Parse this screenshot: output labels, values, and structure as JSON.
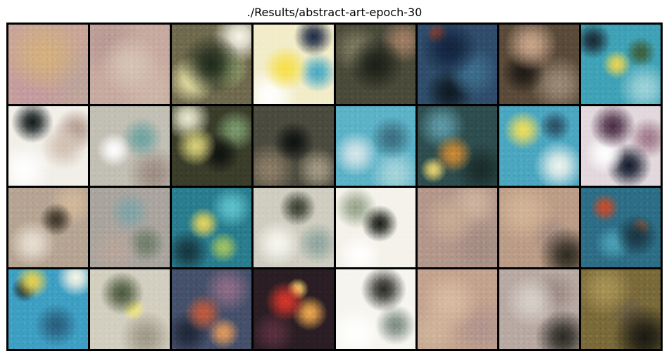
{
  "figure": {
    "title": "./Results/abstract-art-epoch-30",
    "rows": 4,
    "cols": 8,
    "tiles": [
      {
        "base": "#c8a598",
        "blobs": [
          [
            "#d4b07e",
            45,
            40,
            60
          ],
          [
            "#c39aa0",
            30,
            80,
            50
          ],
          [
            "#bba49b",
            80,
            70,
            45
          ]
        ]
      },
      {
        "base": "#c7aaa0",
        "blobs": [
          [
            "#d6c3b5",
            50,
            50,
            55
          ],
          [
            "#b99a95",
            20,
            20,
            40
          ],
          [
            "#cdb6a8",
            75,
            80,
            40
          ]
        ]
      },
      {
        "base": "#6f6a4e",
        "blobs": [
          [
            "#1f2a1c",
            50,
            50,
            55
          ],
          [
            "#e8e1a6",
            25,
            70,
            30
          ],
          [
            "#f7f5e8",
            85,
            15,
            28
          ],
          [
            "#a7b87d",
            70,
            55,
            30
          ]
        ]
      },
      {
        "base": "#f2ecc9",
        "blobs": [
          [
            "#f6e04a",
            40,
            55,
            35
          ],
          [
            "#1d2a42",
            75,
            15,
            22
          ],
          [
            "#49a9c4",
            80,
            60,
            25
          ],
          [
            "#ffffff",
            20,
            90,
            30
          ]
        ]
      },
      {
        "base": "#4a4a3a",
        "blobs": [
          [
            "#1b2018",
            50,
            50,
            50
          ],
          [
            "#7d7a5f",
            25,
            30,
            30
          ],
          [
            "#a07f64",
            85,
            20,
            25
          ]
        ]
      },
      {
        "base": "#2f4d6b",
        "blobs": [
          [
            "#12233d",
            40,
            30,
            40
          ],
          [
            "#3d6e8c",
            70,
            60,
            35
          ],
          [
            "#0e1a22",
            40,
            85,
            30
          ],
          [
            "#b64a2b",
            25,
            12,
            12
          ]
        ]
      },
      {
        "base": "#5a4a3a",
        "blobs": [
          [
            "#c9a68a",
            40,
            25,
            35
          ],
          [
            "#1e1a15",
            30,
            60,
            30
          ],
          [
            "#9b8a75",
            75,
            75,
            35
          ]
        ]
      },
      {
        "base": "#3fa2b6",
        "blobs": [
          [
            "#e9d554",
            45,
            50,
            25
          ],
          [
            "#1a2a35",
            15,
            20,
            20
          ],
          [
            "#9ed3d8",
            80,
            80,
            30
          ],
          [
            "#3c5e3a",
            75,
            35,
            20
          ]
        ]
      },
      {
        "base": "#f2efe8",
        "blobs": [
          [
            "#111a1c",
            30,
            20,
            25
          ],
          [
            "#d1c0b3",
            70,
            50,
            35
          ],
          [
            "#ffffff",
            20,
            80,
            30
          ],
          [
            "#b29b8e",
            85,
            30,
            25
          ]
        ]
      },
      {
        "base": "#c2bfb4",
        "blobs": [
          [
            "#ffffff",
            30,
            55,
            25
          ],
          [
            "#6fa3a0",
            65,
            40,
            30
          ],
          [
            "#9c8c82",
            80,
            85,
            30
          ]
        ]
      },
      {
        "base": "#3a3d2a",
        "blobs": [
          [
            "#d8d07a",
            30,
            50,
            30
          ],
          [
            "#0f130e",
            60,
            60,
            30
          ],
          [
            "#eae9d0",
            20,
            15,
            25
          ],
          [
            "#7b9a6e",
            80,
            30,
            25
          ]
        ]
      },
      {
        "base": "#4b4a3e",
        "blobs": [
          [
            "#0e1210",
            50,
            45,
            35
          ],
          [
            "#8d7d68",
            20,
            80,
            30
          ],
          [
            "#a49a85",
            80,
            80,
            25
          ]
        ]
      },
      {
        "base": "#5cb2c7",
        "blobs": [
          [
            "#d6e7ea",
            25,
            60,
            30
          ],
          [
            "#3b6e80",
            70,
            40,
            30
          ],
          [
            "#a7d5da",
            75,
            85,
            30
          ]
        ]
      },
      {
        "base": "#2e4d4e",
        "blobs": [
          [
            "#cf8a33",
            45,
            60,
            30
          ],
          [
            "#5d9aa7",
            30,
            25,
            30
          ],
          [
            "#1a2c2a",
            80,
            80,
            30
          ],
          [
            "#e8d36f",
            20,
            80,
            15
          ]
        ]
      },
      {
        "base": "#4ba6c0",
        "blobs": [
          [
            "#f0de5a",
            30,
            30,
            25
          ],
          [
            "#eef3ee",
            75,
            75,
            30
          ],
          [
            "#2c5065",
            70,
            25,
            20
          ]
        ]
      },
      {
        "base": "#e2d8dd",
        "blobs": [
          [
            "#4a2d45",
            40,
            25,
            30
          ],
          [
            "#ffffff",
            30,
            60,
            28
          ],
          [
            "#131a2c",
            60,
            75,
            30
          ],
          [
            "#a07a8a",
            85,
            40,
            25
          ]
        ]
      },
      {
        "base": "#b6a493",
        "blobs": [
          [
            "#e8dfd2",
            30,
            70,
            30
          ],
          [
            "#3e3729",
            60,
            40,
            25
          ],
          [
            "#d2b89a",
            80,
            20,
            25
          ]
        ]
      },
      {
        "base": "#a9a59e",
        "blobs": [
          [
            "#7fa3a8",
            50,
            30,
            30
          ],
          [
            "#b8a59a",
            30,
            80,
            30
          ],
          [
            "#6f7d6a",
            70,
            70,
            25
          ]
        ]
      },
      {
        "base": "#2a7d8e",
        "blobs": [
          [
            "#e6d45a",
            40,
            45,
            25
          ],
          [
            "#16353f",
            20,
            80,
            25
          ],
          [
            "#5ec2cc",
            75,
            25,
            25
          ],
          [
            "#a2c35f",
            65,
            75,
            20
          ]
        ]
      },
      {
        "base": "#cfcdc0",
        "blobs": [
          [
            "#3a4032",
            55,
            25,
            25
          ],
          [
            "#f7f6ee",
            30,
            70,
            30
          ],
          [
            "#8fa59e",
            80,
            70,
            25
          ]
        ]
      },
      {
        "base": "#f4f2ea",
        "blobs": [
          [
            "#1b1f17",
            55,
            45,
            30
          ],
          [
            "#96a38a",
            25,
            25,
            25
          ],
          [
            "#ffffff",
            30,
            85,
            25
          ]
        ]
      },
      {
        "base": "#b3978b",
        "blobs": [
          [
            "#c8ab94",
            40,
            40,
            40
          ],
          [
            "#a38c84",
            80,
            75,
            35
          ],
          [
            "#cdb39e",
            70,
            20,
            30
          ]
        ]
      },
      {
        "base": "#bb9c86",
        "blobs": [
          [
            "#d2b597",
            30,
            30,
            40
          ],
          [
            "#2e2a22",
            85,
            85,
            30
          ],
          [
            "#a58c82",
            65,
            60,
            30
          ]
        ]
      },
      {
        "base": "#2d6e86",
        "blobs": [
          [
            "#c94a2a",
            30,
            25,
            18
          ],
          [
            "#1a3543",
            70,
            60,
            30
          ],
          [
            "#4aa0b5",
            40,
            70,
            25
          ],
          [
            "#d46f39",
            75,
            50,
            14
          ]
        ]
      },
      {
        "base": "#3e9fc3",
        "blobs": [
          [
            "#e8d24f",
            30,
            15,
            20
          ],
          [
            "#f7f4e6",
            85,
            10,
            20
          ],
          [
            "#2a5e7e",
            60,
            70,
            30
          ],
          [
            "#1f2a2a",
            20,
            25,
            15
          ]
        ]
      },
      {
        "base": "#d3cfc0",
        "blobs": [
          [
            "#4c5a3c",
            40,
            30,
            30
          ],
          [
            "#f2e57e",
            55,
            50,
            20
          ],
          [
            "#9e9888",
            70,
            85,
            30
          ]
        ]
      },
      {
        "base": "#45506a",
        "blobs": [
          [
            "#c25a3b",
            40,
            55,
            30
          ],
          [
            "#8e6c86",
            70,
            25,
            30
          ],
          [
            "#1f2638",
            20,
            80,
            25
          ],
          [
            "#e39a5d",
            65,
            80,
            20
          ]
        ]
      },
      {
        "base": "#2a1e24",
        "blobs": [
          [
            "#d9362b",
            40,
            40,
            30
          ],
          [
            "#f0a94f",
            70,
            55,
            25
          ],
          [
            "#5a2f3e",
            25,
            80,
            25
          ],
          [
            "#ffd36c",
            55,
            25,
            15
          ]
        ]
      },
      {
        "base": "#f6f5ef",
        "blobs": [
          [
            "#2b2c25",
            60,
            25,
            30
          ],
          [
            "#7d8b83",
            75,
            70,
            25
          ],
          [
            "#ffffff",
            25,
            80,
            30
          ]
        ]
      },
      {
        "base": "#c3a28e",
        "blobs": [
          [
            "#d8bba1",
            40,
            40,
            45
          ],
          [
            "#b1958d",
            80,
            75,
            35
          ],
          [
            "#cfb49a",
            20,
            80,
            30
          ]
        ]
      },
      {
        "base": "#b8a9a2",
        "blobs": [
          [
            "#d6cfc8",
            40,
            40,
            40
          ],
          [
            "#2b2a24",
            80,
            85,
            30
          ],
          [
            "#9d8c86",
            70,
            30,
            30
          ]
        ]
      },
      {
        "base": "#7a6a3a",
        "blobs": [
          [
            "#a89356",
            30,
            25,
            35
          ],
          [
            "#1a1a12",
            80,
            85,
            35
          ],
          [
            "#6c5e45",
            60,
            55,
            30
          ]
        ]
      }
    ]
  }
}
